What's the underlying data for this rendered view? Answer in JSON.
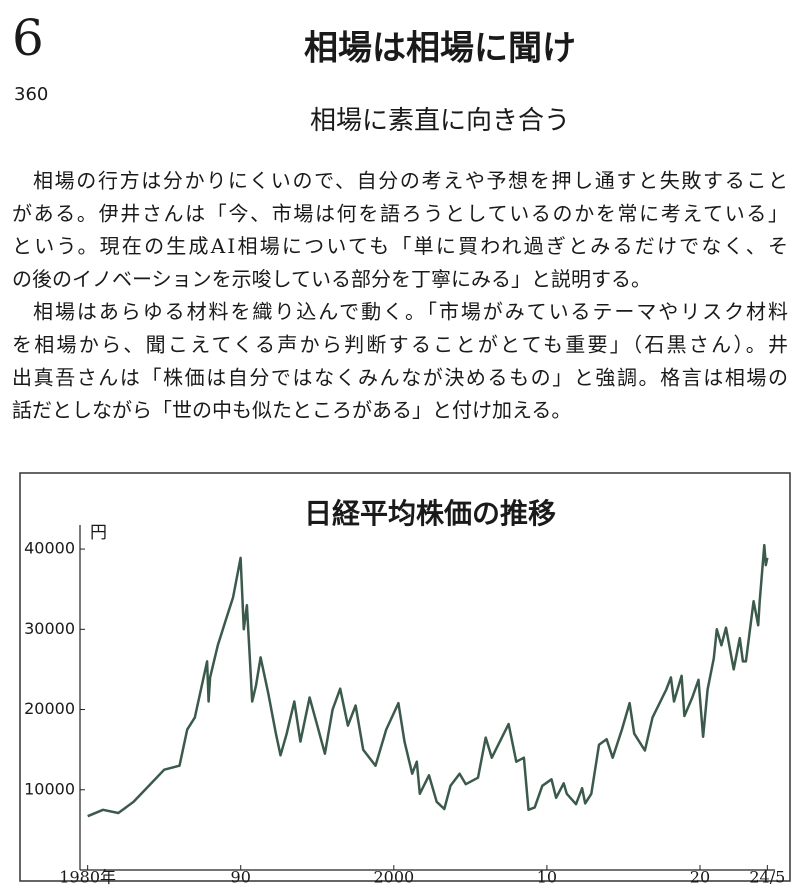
{
  "header": {
    "number": "6",
    "page": "360",
    "title": "相場は相場に聞け",
    "subtitle": "相場に素直に向き合う"
  },
  "body": {
    "paragraphs": [
      [
        "相場の行方は分かりにくいので、自分の考えや予想を押し通すと失敗すること",
        "がある。伊井さんは「今、市場は何を語ろうとしているのかを常に考えている」",
        "という。現在の生成AI相場についても「単に買われ過ぎとみるだけでなく、そ",
        "の後のイノベーションを示唆している部分を丁寧にみる」と説明する。"
      ],
      [
        "相場はあらゆる材料を織り込んで動く。「市場がみているテーマやリスク材料",
        "を相場から、聞こえてくる声から判断することがとても重要」（石黒さん）。井",
        "出真吾さんは「株価は自分ではなくみんなが決めるもの」と強調。格言は相場の",
        "話だとしながら「世の中も似たところがある」と付け加える。"
      ]
    ]
  },
  "chart_data": {
    "type": "line",
    "title": "日経平均株価の推移",
    "y_label": "円",
    "color": "#3b5a4b",
    "x": [
      1980,
      1981,
      1982,
      1983,
      1984,
      1985,
      1986,
      1986.5,
      1987,
      1987.8,
      1987.9,
      1988,
      1988.5,
      1989,
      1989.5,
      1989.99,
      1990.2,
      1990.4,
      1990.75,
      1991,
      1991.3,
      1991.8,
      1992.3,
      1992.6,
      1993,
      1993.5,
      1993.9,
      1994.5,
      1995,
      1995.5,
      1996,
      1996.5,
      1997,
      1997.5,
      1998,
      1998.8,
      1999.5,
      2000.3,
      2000.7,
      2001.2,
      2001.5,
      2001.7,
      2002.3,
      2002.8,
      2003.3,
      2003.7,
      2004.3,
      2004.7,
      2005.5,
      2006,
      2006.4,
      2007.5,
      2008,
      2008.5,
      2008.8,
      2009.2,
      2009.7,
      2010.3,
      2010.6,
      2011.1,
      2011.3,
      2011.9,
      2012.3,
      2012.5,
      2012.9,
      2013.4,
      2013.9,
      2014.3,
      2014.9,
      2015.4,
      2015.7,
      2016.4,
      2016.9,
      2017.8,
      2018.1,
      2018.3,
      2018.8,
      2018.98,
      2019.5,
      2019.9,
      2020.2,
      2020.5,
      2020.9,
      2021.1,
      2021.4,
      2021.7,
      2022.2,
      2022.6,
      2022.8,
      2023,
      2023.5,
      2023.8,
      2023.9,
      2024.2,
      2024.3,
      2024.4
    ],
    "values": [
      6700,
      7500,
      7100,
      8500,
      10500,
      12500,
      13000,
      17500,
      19000,
      26000,
      21000,
      24000,
      28000,
      31000,
      34000,
      38900,
      30000,
      33000,
      21000,
      23000,
      26500,
      22000,
      17000,
      14300,
      17000,
      21000,
      16000,
      21500,
      18000,
      14500,
      20000,
      22600,
      18000,
      20500,
      15000,
      13000,
      17500,
      20800,
      16000,
      12000,
      13500,
      9500,
      11800,
      8500,
      7600,
      10500,
      12000,
      10700,
      11500,
      16500,
      14000,
      18200,
      13500,
      14000,
      7500,
      7800,
      10500,
      11300,
      9000,
      10800,
      9500,
      8200,
      10200,
      8300,
      9500,
      15600,
      16300,
      14000,
      17500,
      20800,
      17000,
      14900,
      19000,
      22500,
      24000,
      21000,
      24200,
      19200,
      21500,
      23700,
      16600,
      22500,
      26400,
      30000,
      28000,
      30200,
      25000,
      28900,
      26000,
      26000,
      33500,
      30500,
      33500,
      40500,
      38000,
      38900
    ],
    "xlim": [
      1979.5,
      2024.9
    ],
    "ylim": [
      0,
      43000
    ],
    "xticks": [
      {
        "value": 1980,
        "label": "1980年"
      },
      {
        "value": 1990,
        "label": "90"
      },
      2000,
      {
        "value": 2010,
        "label": "10"
      },
      {
        "value": 2020,
        "label": "20"
      },
      {
        "value": 2024.4,
        "label": "24/5"
      }
    ],
    "yticks": [
      10000,
      20000,
      30000,
      40000
    ],
    "grid": false
  }
}
